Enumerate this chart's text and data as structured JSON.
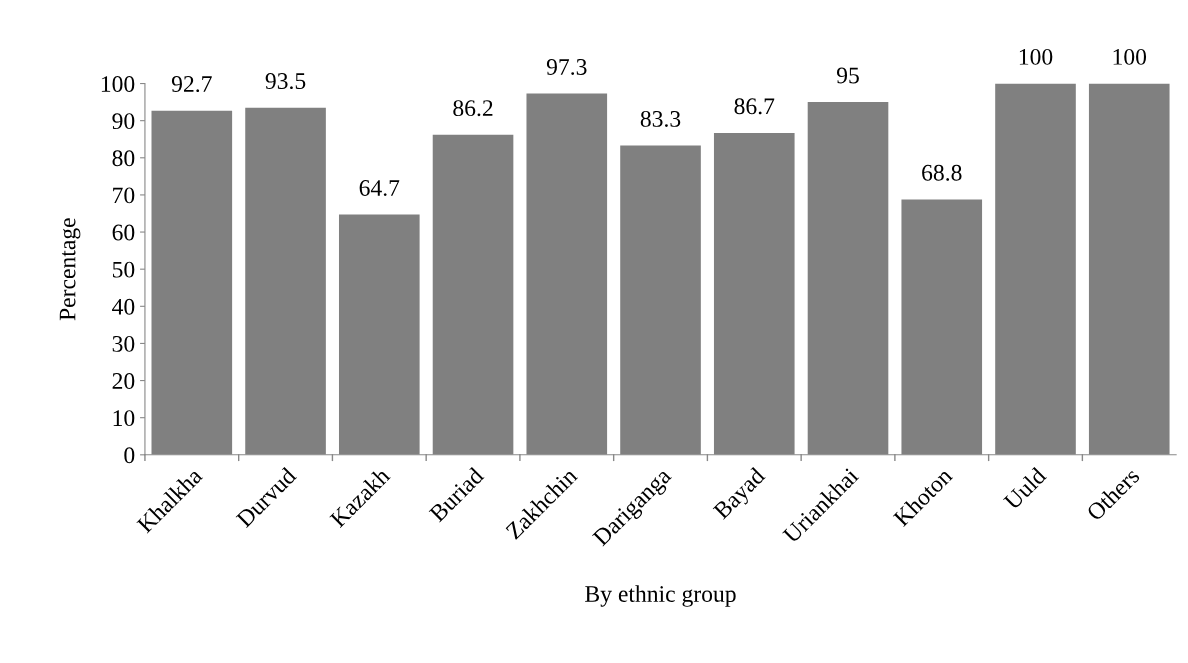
{
  "chart_data": {
    "type": "bar",
    "xlabel": "By ethnic group",
    "ylabel": "Percentage",
    "categories": [
      "Khalkha",
      "Durvud",
      "Kazakh",
      "Buriad",
      "Zakhchin",
      "Dariganga",
      "Bayad",
      "Uriankhai",
      "Khoton",
      "Uuld",
      "Others"
    ],
    "values": [
      92.7,
      93.5,
      64.7,
      86.2,
      97.3,
      83.3,
      86.7,
      95,
      68.8,
      100,
      100
    ],
    "color": "#808080",
    "ylim": [
      0,
      100
    ],
    "yticks": [
      0,
      10,
      20,
      30,
      40,
      50,
      60,
      70,
      80,
      90,
      100
    ],
    "data_labels": true,
    "grid": false,
    "legend": false
  }
}
